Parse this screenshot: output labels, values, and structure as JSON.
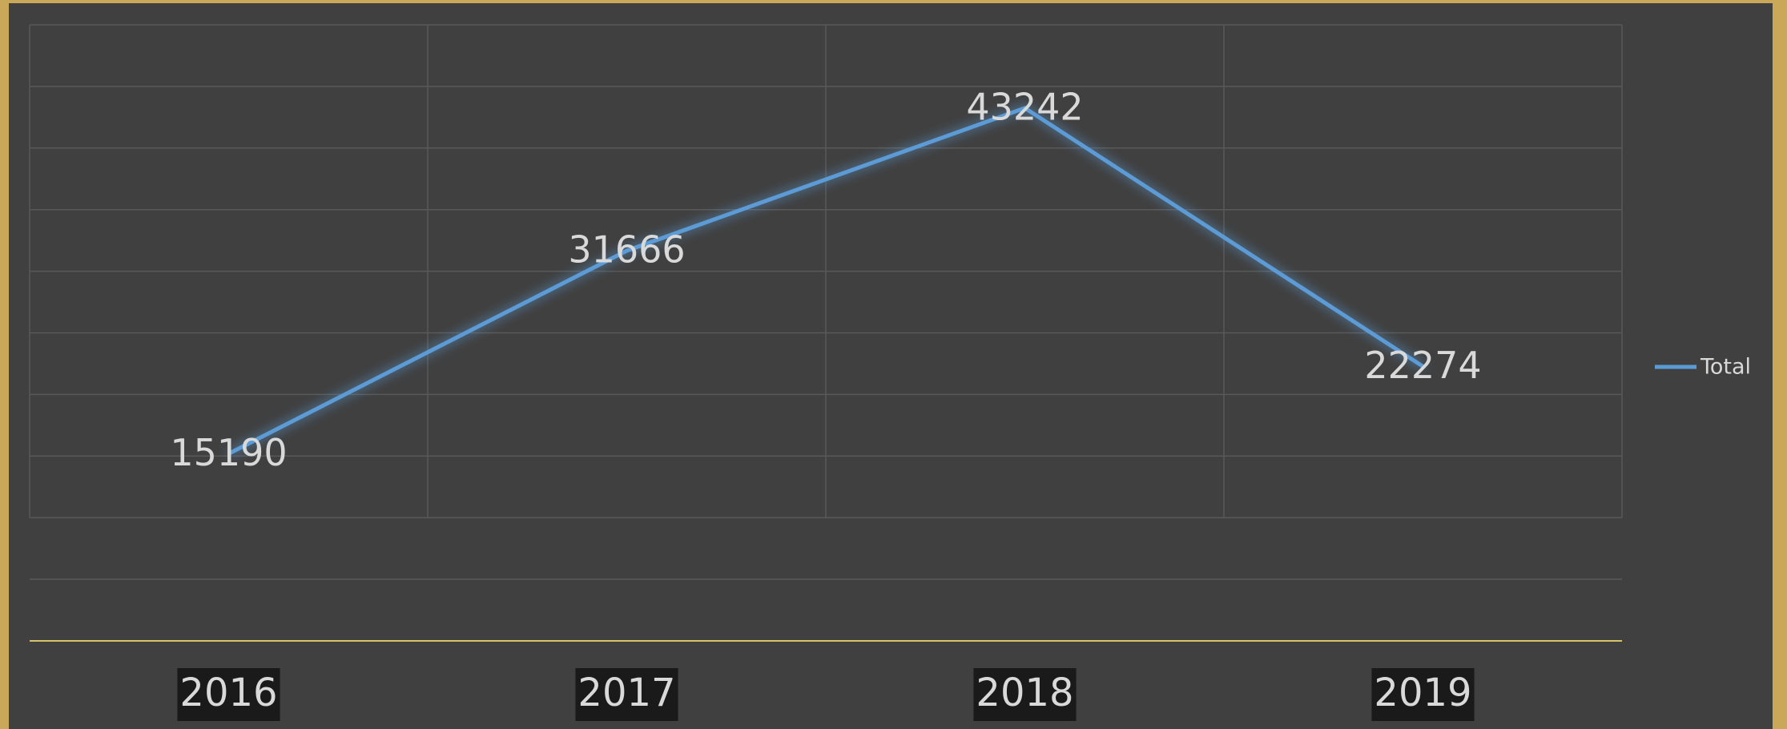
{
  "chart_data": {
    "type": "line",
    "categories": [
      "2016",
      "2017",
      "2018",
      "2019"
    ],
    "series": [
      {
        "name": "Total",
        "color": "#5b9bd5",
        "values": [
          15190,
          31666,
          43242,
          22274
        ]
      }
    ],
    "ylim": [
      0,
      50000
    ],
    "yticks": [
      0,
      5000,
      10000,
      15000,
      20000,
      25000,
      30000,
      35000,
      40000,
      45000,
      50000
    ],
    "grid": true,
    "legend": "right"
  }
}
